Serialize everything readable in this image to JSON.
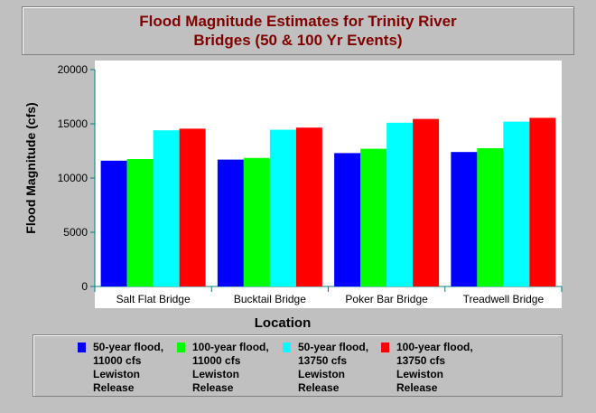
{
  "chart_data": {
    "type": "bar",
    "title": "Flood Magnitude Estimates for Trinity River Bridges (50 & 100 Yr Events)",
    "xlabel": "Location",
    "ylabel": "Flood Magnitude (cfs)",
    "ylim": [
      0,
      20000
    ],
    "yticks": [
      "0",
      "5000",
      "10000",
      "15000",
      "20000"
    ],
    "categories": [
      "Salt Flat Bridge",
      "Bucktail Bridge",
      "Poker Bar Bridge",
      "Treadwell Bridge"
    ],
    "series": [
      {
        "name": "50-year flood, 11000 cfs Lewiston Release",
        "color": "#0000ff",
        "values": [
          11600,
          11700,
          12300,
          12400
        ]
      },
      {
        "name": "100-year flood, 11000 cfs Lewiston Release",
        "color": "#00ff00",
        "values": [
          11750,
          11850,
          12700,
          12750
        ]
      },
      {
        "name": "50-year flood, 13750 cfs Lewiston Release",
        "color": "#00ffff",
        "values": [
          14400,
          14450,
          15100,
          15200
        ]
      },
      {
        "name": "100-year flood, 13750 cfs Lewiston Release",
        "color": "#ff0000",
        "values": [
          14550,
          14650,
          15450,
          15550
        ]
      }
    ],
    "grid": false,
    "legend_position": "bottom"
  }
}
